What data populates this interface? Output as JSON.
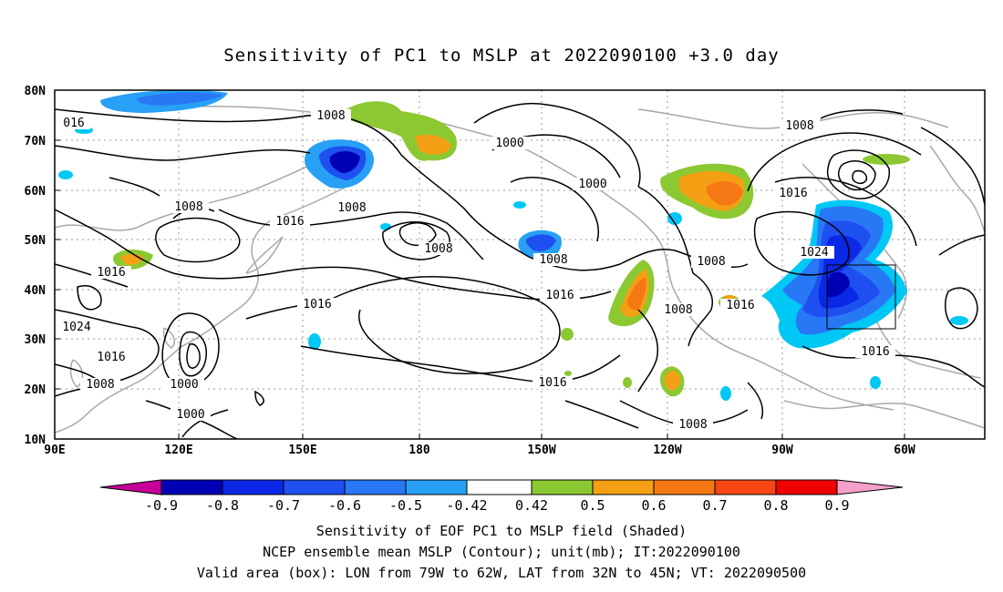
{
  "title": "Sensitivity of PC1 to MSLP at 2022090100 +3.0 day",
  "map": {
    "lat_labels": [
      "80N",
      "70N",
      "60N",
      "50N",
      "40N",
      "30N",
      "20N",
      "10N"
    ],
    "lon_labels": [
      "90E",
      "120E",
      "150E",
      "180",
      "150W",
      "120W",
      "90W",
      "60W"
    ],
    "contour_labels": [
      {
        "text": "016",
        "id": "c-016"
      },
      {
        "text": "1008",
        "id": "c-1008-a"
      },
      {
        "text": "1000",
        "id": "c-1000-a"
      },
      {
        "text": "1008",
        "id": "c-1008-b"
      },
      {
        "text": "1000",
        "id": "c-1000-b"
      },
      {
        "text": "1016",
        "id": "c-1016-a"
      },
      {
        "text": "1008",
        "id": "c-1008-c"
      },
      {
        "text": "1016",
        "id": "c-1016-b"
      },
      {
        "text": "1008",
        "id": "c-1008-d"
      },
      {
        "text": "1008",
        "id": "c-1008-e"
      },
      {
        "text": "1008",
        "id": "c-1008-f"
      },
      {
        "text": "1024",
        "id": "c-1024-a"
      },
      {
        "text": "1016",
        "id": "c-1016-c"
      },
      {
        "text": "1016",
        "id": "c-1016-d"
      },
      {
        "text": "1016",
        "id": "c-1016-e"
      },
      {
        "text": "1008",
        "id": "c-1008-g"
      },
      {
        "text": "1016",
        "id": "c-1016-f"
      },
      {
        "text": "1016",
        "id": "c-1016-g"
      },
      {
        "text": "1024",
        "id": "c-1024-b"
      },
      {
        "text": "1016",
        "id": "c-1016-h"
      },
      {
        "text": "1008",
        "id": "c-1008-h"
      },
      {
        "text": "1000",
        "id": "c-1000-c"
      },
      {
        "text": "1008",
        "id": "c-1008-i"
      },
      {
        "text": "1016",
        "id": "c-1016-i"
      },
      {
        "text": "1008",
        "id": "c-1008-j"
      }
    ],
    "box": {
      "lon": "79W to 62W",
      "lat": "32N to 45N"
    }
  },
  "colorbar": {
    "labels": [
      "-0.9",
      "-0.8",
      "-0.7",
      "-0.6",
      "-0.5",
      "-0.42",
      "0.42",
      "0.5",
      "0.6",
      "0.7",
      "0.8",
      "0.9"
    ],
    "colors": [
      "#c8009a",
      "#0000b4",
      "#0a28e6",
      "#1e50f0",
      "#2878f5",
      "#28a0f5",
      "#00c8f5",
      "#ffffff",
      "#8cc832",
      "#f5a014",
      "#f57814",
      "#f54614",
      "#f00000",
      "#f5a0c8"
    ]
  },
  "captions": {
    "line1": "Sensitivity of EOF PC1 to MSLP field (Shaded)",
    "line2": "NCEP ensemble mean MSLP (Contour); unit(mb); IT:2022090100",
    "line3": "Valid area (box): LON from 79W to 62W, LAT from 32N to 45N; VT: 2022090500"
  }
}
